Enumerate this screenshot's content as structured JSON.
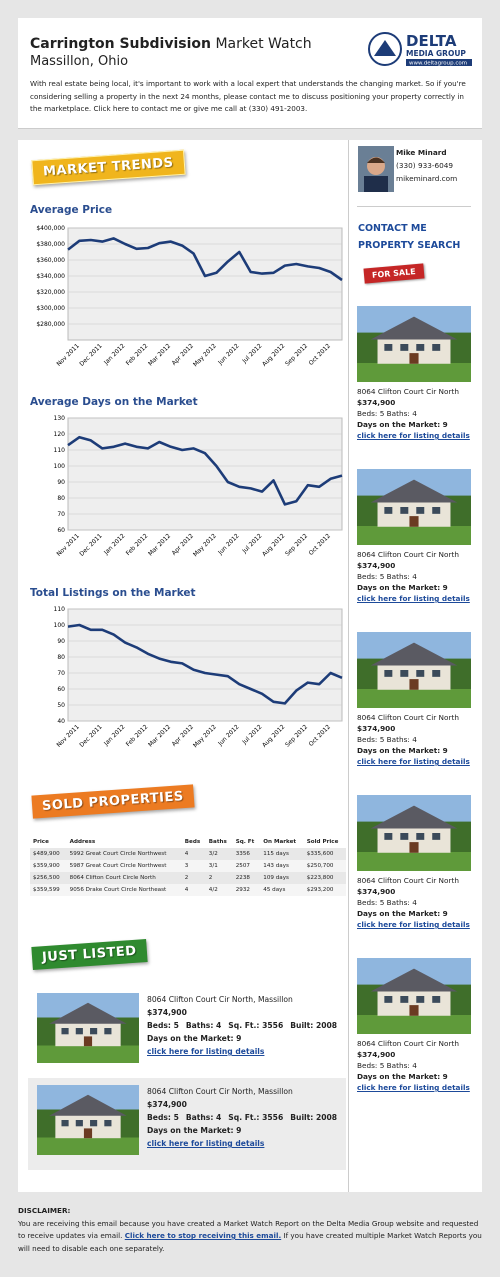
{
  "header": {
    "title_bold": "Carrington Subdivision",
    "title_rest": "Market Watch",
    "subtitle": "Massillon, Ohio",
    "logo": {
      "name": "DELTA",
      "sub": "MEDIA GROUP",
      "url": "www.deltagroup.com"
    },
    "intro": "With real estate being local, it's important to work with a local expert that understands the changing market. So if you're considering selling a property in the next 24 months, please contact me to discuss positioning your property correctly in the marketplace. Click here to contact me or give me call at (330) 491-2003."
  },
  "agent": {
    "name": "Mike Minard",
    "phone": "(330) 933-6049",
    "site": "mikeminard.com"
  },
  "nav": [
    "CONTACT ME",
    "PROPERTY SEARCH"
  ],
  "for_sale": "FOR SALE",
  "sections": {
    "trends": "MARKET TRENDS",
    "sold": "SOLD PROPERTIES",
    "listed": "JUST LISTED"
  },
  "chart_data": [
    {
      "type": "line",
      "title": "Average Price",
      "categories": [
        null,
        "Nov 2011",
        null,
        "Dec 2011",
        null,
        "Jan 2012",
        null,
        "Feb 2012",
        null,
        "Mar 2012",
        null,
        "Apr 2012",
        null,
        "May 2012",
        null,
        "Jun 2012",
        null,
        "Jul 2012",
        null,
        "Aug 2012",
        null,
        "Sep 2012",
        null,
        "Oct 2012",
        null
      ],
      "values": [
        373000,
        384000,
        385000,
        383000,
        387000,
        380000,
        374000,
        375000,
        381000,
        383000,
        378000,
        368000,
        340000,
        344000,
        358000,
        370000,
        345000,
        343000,
        344000,
        353000,
        355000,
        352000,
        350000,
        345000,
        335000
      ],
      "color": "#1d3c78",
      "ylim": [
        260000,
        400000
      ],
      "yticks": [
        {
          "value": 280000,
          "label": "$280,000"
        },
        {
          "value": 300000,
          "label": "$300,000"
        },
        {
          "value": 320000,
          "label": "$320,000"
        },
        {
          "value": 340000,
          "label": "$340,000"
        },
        {
          "value": 360000,
          "label": "$360,000"
        },
        {
          "value": 380000,
          "label": "$380,000"
        },
        {
          "value": 400000,
          "label": "$400,000"
        }
      ],
      "grid": true
    },
    {
      "type": "line",
      "title": "Average Days on the Market",
      "categories": [
        null,
        "Nov 2011",
        null,
        "Dec 2011",
        null,
        "Jan 2012",
        null,
        "Feb 2012",
        null,
        "Mar 2012",
        null,
        "Apr 2012",
        null,
        "May 2012",
        null,
        "Jun 2012",
        null,
        "Jul 2012",
        null,
        "Aug 2012",
        null,
        "Sep 2012",
        null,
        "Oct 2012",
        null
      ],
      "values": [
        113,
        118,
        116,
        111,
        112,
        114,
        112,
        111,
        115,
        112,
        110,
        111,
        108,
        100,
        90,
        87,
        86,
        84,
        91,
        76,
        78,
        88,
        87,
        92,
        94
      ],
      "color": "#1d3c78",
      "ylim": [
        60,
        130
      ],
      "yticks": [
        60,
        70,
        80,
        90,
        100,
        110,
        120,
        130
      ],
      "grid": true
    },
    {
      "type": "line",
      "title": "Total Listings on the Market",
      "categories": [
        null,
        "Nov 2011",
        null,
        "Dec 2011",
        null,
        "Jan 2012",
        null,
        "Feb 2012",
        null,
        "Mar 2012",
        null,
        "Apr 2012",
        null,
        "May 2012",
        null,
        "Jun 2012",
        null,
        "Jul 2012",
        null,
        "Aug 2012",
        null,
        "Sep 2012",
        null,
        "Oct 2012",
        null
      ],
      "values": [
        99,
        100,
        97,
        97,
        94,
        89,
        86,
        82,
        79,
        77,
        76,
        72,
        70,
        69,
        68,
        63,
        60,
        57,
        52,
        51,
        59,
        64,
        63,
        70,
        67
      ],
      "color": "#1d3c78",
      "ylim": [
        40,
        110
      ],
      "yticks": [
        40,
        50,
        60,
        70,
        80,
        90,
        100,
        110
      ],
      "grid": true
    }
  ],
  "sidebar_listings": [
    {
      "address": "8064 Clifton Court Cir North",
      "price": "$374,900",
      "beds": "Beds: 5 Baths: 4",
      "days": "Days on the Market: 9",
      "link": "click here for listing details"
    },
    {
      "address": "8064 Clifton Court Cir North",
      "price": "$374,900",
      "beds": "Beds: 5 Baths: 4",
      "days": "Days on the Market: 9",
      "link": "click here for listing details"
    },
    {
      "address": "8064 Clifton Court Cir North",
      "price": "$374,900",
      "beds": "Beds: 5 Baths: 4",
      "days": "Days on the Market: 9",
      "link": "click here for listing details"
    },
    {
      "address": "8064 Clifton Court Cir North",
      "price": "$374,900",
      "beds": "Beds: 5 Baths: 4",
      "days": "Days on the Market: 9",
      "link": "click here for listing details"
    },
    {
      "address": "8064 Clifton Court Cir North",
      "price": "$374,900",
      "beds": "Beds: 5 Baths: 4",
      "days": "Days on the Market: 9",
      "link": "click here for listing details"
    }
  ],
  "sold_table": {
    "columns": [
      "Price",
      "Address",
      "Beds",
      "Baths",
      "Sq. Ft",
      "On Market",
      "Sold Price"
    ],
    "rows": [
      [
        "$489,900",
        "5992 Great Court Circle Northwest",
        "4",
        "3/2",
        "3356",
        "115 days",
        "$335,600"
      ],
      [
        "$359,900",
        "5987 Great Court Circle Northwest",
        "3",
        "3/1",
        "2507",
        "143 days",
        "$250,700"
      ],
      [
        "$256,500",
        "8064 Clifton Court Circle North",
        "2",
        "2",
        "2238",
        "109 days",
        "$223,800"
      ],
      [
        "$359,599",
        "9056 Drake Court Circle Northeast",
        "4",
        "4/2",
        "2932",
        "45 days",
        "$293,200"
      ]
    ]
  },
  "just_listed": [
    {
      "address": "8064 Clifton Court Cir North, Massillon",
      "price": "$374,900",
      "details": [
        "Beds: 5",
        "Baths: 4",
        "Sq. Ft.: 3556",
        "Built: 2008"
      ],
      "days": "Days on the Market: 9",
      "link": "click here for listing details"
    },
    {
      "address": "8064 Clifton Court Cir North, Massillon",
      "price": "$374,900",
      "details": [
        "Beds: 5",
        "Baths: 4",
        "Sq. Ft.: 3556",
        "Built: 2008"
      ],
      "days": "Days on the Market: 9",
      "link": "click here for listing details"
    }
  ],
  "disclaimer": {
    "title": "DISCLAIMER:",
    "text_before": "You are receiving this email because you have created a Market Watch Report on the Delta Media Group website and requested to receive updates via email.",
    "link": "Click here to stop receiving this email.",
    "text_after": "If you have created multiple Market Watch Reports you will need to disable each one separately."
  }
}
